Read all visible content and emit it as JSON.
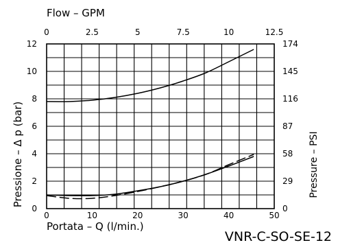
{
  "chart_data": {
    "type": "line",
    "code_label": "VNR-C-SO-SE-12",
    "top_axis": {
      "label": "Flow  –  GPM",
      "ticks": [
        "0",
        "2.5",
        "5",
        "7.5",
        "10",
        "12.5"
      ],
      "range": [
        0,
        12.5
      ]
    },
    "x_axis": {
      "label": "Portata  –  Q  (l/min.)",
      "ticks": [
        "0",
        "10",
        "20",
        "30",
        "40",
        "50"
      ],
      "range": [
        0,
        50
      ]
    },
    "y_left": {
      "label": "Pressione  –  Δ p  (bar)",
      "ticks": [
        "0",
        "2",
        "4",
        "6",
        "8",
        "10",
        "12"
      ],
      "range": [
        0,
        12
      ]
    },
    "y_right": {
      "label": "Pressure  –  PSI",
      "ticks": [
        "0",
        "29",
        "58",
        "87",
        "116",
        "145",
        "174"
      ],
      "range": [
        0,
        174
      ]
    },
    "grid": true,
    "series": [
      {
        "style": "solid",
        "x": [
          0,
          5,
          10,
          15,
          20,
          25,
          30,
          35,
          40,
          45.5
        ],
        "y": [
          7.8,
          7.8,
          7.9,
          8.1,
          8.4,
          8.8,
          9.3,
          9.9,
          10.7,
          11.6
        ]
      },
      {
        "style": "solid",
        "x": [
          0,
          5,
          10,
          15,
          20,
          25,
          30,
          35,
          40,
          45.5
        ],
        "y": [
          1.0,
          0.95,
          0.95,
          1.05,
          1.3,
          1.6,
          2.0,
          2.5,
          3.1,
          3.8
        ]
      },
      {
        "style": "dashed",
        "x": [
          0,
          5,
          10,
          15,
          20,
          25,
          30,
          35,
          40,
          45.5
        ],
        "y": [
          0.95,
          0.75,
          0.75,
          0.95,
          1.25,
          1.6,
          2.0,
          2.5,
          3.2,
          3.95
        ]
      }
    ]
  }
}
